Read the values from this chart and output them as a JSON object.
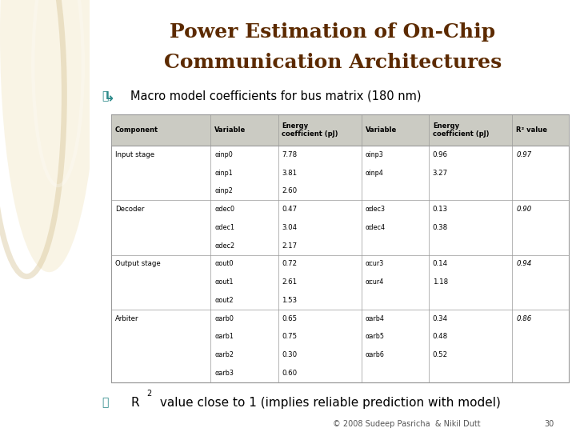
{
  "title_line1": "Power Estimation of On-Chip",
  "title_line2": "Communication Architectures",
  "title_color": "#5C2A00",
  "subtitle": "Macro model coefficients for bus matrix (180 nm)",
  "subtitle_color": "#000000",
  "bullet_color": "#2E8B8B",
  "footer": "© 2008 Sudeep Pasricha  & Nikil Dutt",
  "page_number": "30",
  "bg_color": "#FFFFFF",
  "left_panel_color": "#E8D5A3",
  "col_headers": [
    "Component",
    "Variable",
    "Energy\ncoefficient (pJ)",
    "Variable",
    "Energy\ncoefficient (pJ)",
    "R² value"
  ],
  "rows": [
    [
      "Input stage",
      "αinp0",
      "7.78",
      "αinp3",
      "0.96",
      "0.97"
    ],
    [
      "",
      "αinp1",
      "3.81",
      "αinp4",
      "3.27",
      ""
    ],
    [
      "",
      "αinp2",
      "2.60",
      "",
      "",
      ""
    ],
    [
      "Decoder",
      "αdec0",
      "0.47",
      "αdec3",
      "0.13",
      "0.90"
    ],
    [
      "",
      "αdec1",
      "3.04",
      "αdec4",
      "0.38",
      ""
    ],
    [
      "",
      "αdec2",
      "2.17",
      "",
      "",
      ""
    ],
    [
      "Output stage",
      "αout0",
      "0.72",
      "αcur3",
      "0.14",
      "0.94"
    ],
    [
      "",
      "αout1",
      "2.61",
      "αcur4",
      "1.18",
      ""
    ],
    [
      "",
      "αout2",
      "1.53",
      "",
      "",
      ""
    ],
    [
      "Arbiter",
      "αarb0",
      "0.65",
      "αarb4",
      "0.34",
      "0.86"
    ],
    [
      "",
      "αarb1",
      "0.75",
      "αarb5",
      "0.48",
      ""
    ],
    [
      "",
      "αarb2",
      "0.30",
      "αarb6",
      "0.52",
      ""
    ],
    [
      "",
      "αarb3",
      "0.60",
      "",
      "",
      ""
    ]
  ],
  "row_dividers": [
    3,
    6,
    9
  ],
  "bottom_text": "R",
  "bottom_sup": "2",
  "bottom_rest": " value close to 1 (implies reliable prediction with model)"
}
